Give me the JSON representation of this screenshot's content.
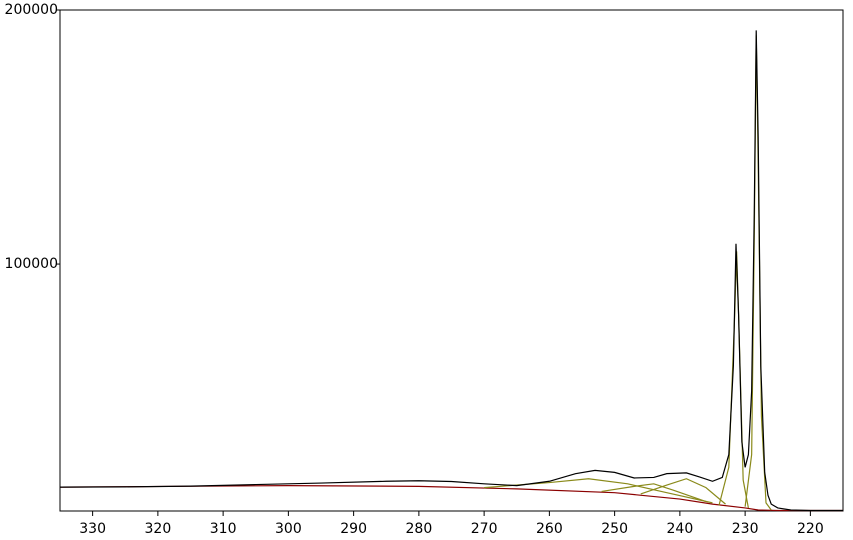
{
  "chart_data": {
    "type": "line",
    "xlim": [
      335,
      215
    ],
    "ylim": [
      2800,
      200000
    ],
    "xticks": [
      330,
      320,
      310,
      300,
      290,
      280,
      270,
      260,
      250,
      240,
      230,
      220
    ],
    "yticks": [
      100000,
      200000
    ],
    "series": [
      {
        "color": "#8b0000",
        "x": [
          335,
          300,
          280,
          265,
          250,
          240,
          235,
          230,
          228,
          225,
          215
        ],
        "values": [
          12200,
          12800,
          12500,
          11500,
          10000,
          7500,
          5500,
          4000,
          3200,
          3000,
          3000
        ]
      },
      {
        "color": "#8a8a1a",
        "x": [
          270,
          260,
          254,
          248,
          242,
          235
        ],
        "values": [
          12000,
          14000,
          15500,
          13500,
          10000,
          6000
        ]
      },
      {
        "color": "#8a8a1a",
        "x": [
          252,
          247,
          244,
          241,
          236
        ],
        "values": [
          10500,
          12500,
          13500,
          11000,
          6500
        ]
      },
      {
        "color": "#8a8a1a",
        "x": [
          246,
          242,
          239,
          236,
          233
        ],
        "values": [
          9500,
          13000,
          15500,
          12000,
          5500
        ]
      },
      {
        "color": "#8a8a1a",
        "x": [
          234,
          232.5,
          231.6,
          231.3,
          231,
          230.3,
          229.5
        ],
        "values": [
          5000,
          20000,
          80000,
          105000,
          80000,
          15000,
          4000
        ]
      },
      {
        "color": "#8a8a1a",
        "x": [
          230,
          229,
          228.6,
          228.3,
          228,
          227.5,
          226.8,
          226
        ],
        "values": [
          4500,
          25000,
          110000,
          190000,
          140000,
          40000,
          6000,
          3200
        ]
      },
      {
        "color": "#000000",
        "x": [
          335,
          325,
          315,
          305,
          295,
          285,
          280,
          275,
          270,
          265,
          260,
          256,
          253,
          250,
          247,
          244,
          242,
          239,
          237,
          235,
          233.5,
          232.5,
          231.8,
          231.4,
          231,
          230.5,
          230,
          229.5,
          229,
          228.6,
          228.3,
          228,
          227.6,
          227,
          226.5,
          226,
          225,
          223,
          220,
          215
        ],
        "values": [
          12200,
          12300,
          12600,
          13200,
          13800,
          14500,
          14700,
          14400,
          13500,
          12800,
          14500,
          17500,
          18800,
          18000,
          15800,
          16000,
          17500,
          17800,
          16200,
          14500,
          16000,
          25000,
          60000,
          108000,
          80000,
          30000,
          20000,
          25000,
          50000,
          120000,
          192000,
          150000,
          60000,
          18000,
          9000,
          5500,
          4000,
          3200,
          3000,
          3000
        ]
      }
    ]
  }
}
